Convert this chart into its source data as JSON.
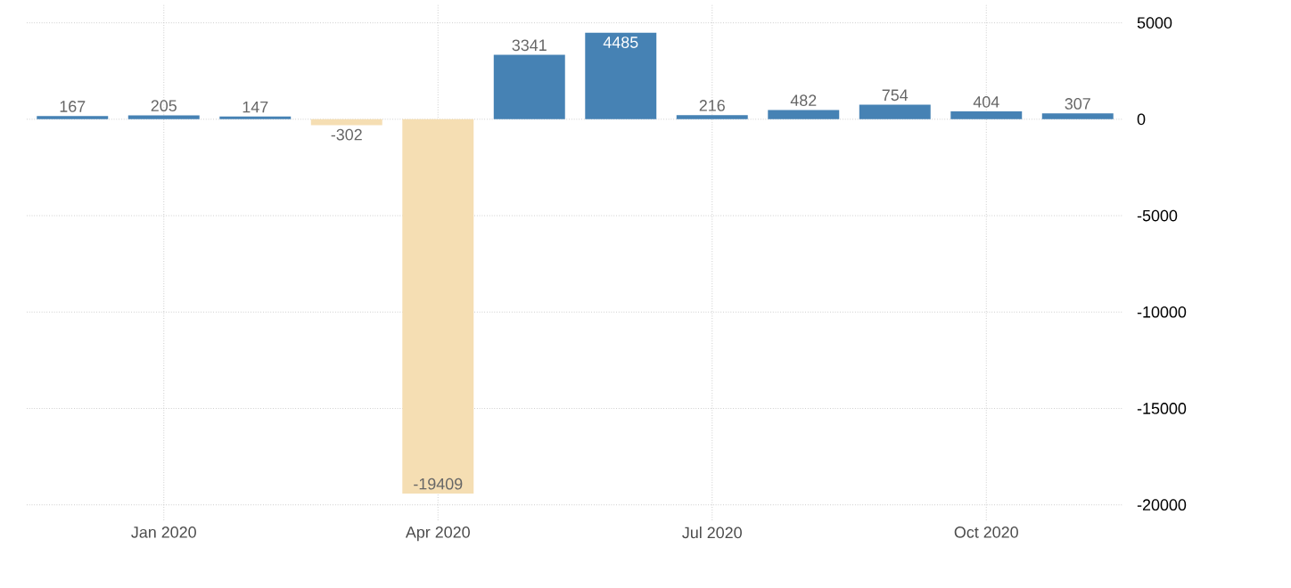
{
  "chart_data": {
    "type": "bar",
    "categories": [
      null,
      "Jan 2020",
      null,
      null,
      "Apr 2020",
      null,
      null,
      "Jul 2020",
      null,
      null,
      "Oct 2020",
      null
    ],
    "values": [
      167,
      205,
      147,
      -302,
      -19409,
      3341,
      4485,
      216,
      482,
      754,
      404,
      307
    ],
    "colors": [
      "#4682b4",
      "#4682b4",
      "#4682b4",
      "#f5deb3",
      "#f5deb3",
      "#4682b4",
      "#4682b4",
      "#4682b4",
      "#4682b4",
      "#4682b4",
      "#4682b4",
      "#4682b4"
    ],
    "ylim": [
      -20800,
      6000
    ],
    "yticks": [
      5000,
      0,
      -5000,
      -10000,
      -15000,
      -20000
    ],
    "grid": true,
    "data_labels": true
  }
}
